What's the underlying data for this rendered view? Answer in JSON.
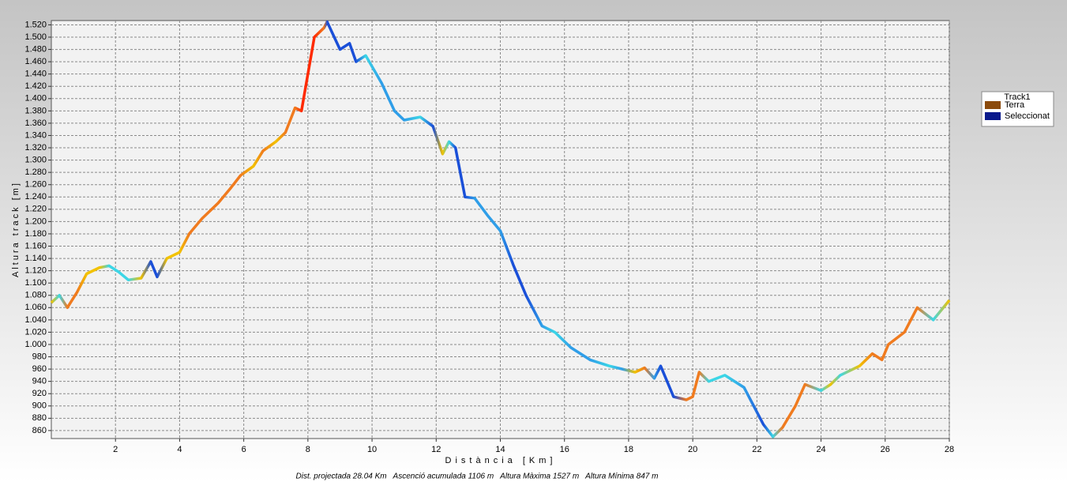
{
  "chart_data": {
    "type": "line",
    "x_label": "Distància [Km]",
    "y_label": "Altura track [m]",
    "footer": "Dist. projectada 28.04 Km   Ascenció acumulada 1106 m   Altura Màxima 1527 m   Altura Mínima 847 m",
    "legend": {
      "title": "Track1",
      "entries": [
        {
          "name": "Terra",
          "color": "#8b4a0c"
        },
        {
          "name": "Seleccionat",
          "color": "#0a1a8c"
        }
      ]
    },
    "xlim": [
      0,
      28
    ],
    "xticks": [
      2,
      4,
      6,
      8,
      10,
      12,
      14,
      16,
      18,
      20,
      22,
      24,
      26,
      28
    ],
    "ylim": [
      847,
      1527
    ],
    "yticks": [
      {
        "value": 860,
        "label": "860"
      },
      {
        "value": 880,
        "label": "880"
      },
      {
        "value": 900,
        "label": "900"
      },
      {
        "value": 920,
        "label": "920"
      },
      {
        "value": 940,
        "label": "940"
      },
      {
        "value": 960,
        "label": "960"
      },
      {
        "value": 980,
        "label": "980"
      },
      {
        "value": 1000,
        "label": "1.000"
      },
      {
        "value": 1020,
        "label": "1.020"
      },
      {
        "value": 1040,
        "label": "1.040"
      },
      {
        "value": 1060,
        "label": "1.060"
      },
      {
        "value": 1080,
        "label": "1.080"
      },
      {
        "value": 1100,
        "label": "1.100"
      },
      {
        "value": 1120,
        "label": "1.120"
      },
      {
        "value": 1140,
        "label": "1.140"
      },
      {
        "value": 1160,
        "label": "1.160"
      },
      {
        "value": 1180,
        "label": "1.180"
      },
      {
        "value": 1200,
        "label": "1.200"
      },
      {
        "value": 1220,
        "label": "1.220"
      },
      {
        "value": 1240,
        "label": "1.240"
      },
      {
        "value": 1260,
        "label": "1.260"
      },
      {
        "value": 1280,
        "label": "1.280"
      },
      {
        "value": 1300,
        "label": "1.300"
      },
      {
        "value": 1320,
        "label": "1.320"
      },
      {
        "value": 1340,
        "label": "1.340"
      },
      {
        "value": 1360,
        "label": "1.360"
      },
      {
        "value": 1380,
        "label": "1.380"
      },
      {
        "value": 1400,
        "label": "1.400"
      },
      {
        "value": 1420,
        "label": "1.420"
      },
      {
        "value": 1440,
        "label": "1.440"
      },
      {
        "value": 1460,
        "label": "1.460"
      },
      {
        "value": 1480,
        "label": "1.480"
      },
      {
        "value": 1500,
        "label": "1.500"
      },
      {
        "value": 1520,
        "label": "1.520"
      }
    ],
    "grid": true,
    "x": [
      0,
      0.25,
      0.5,
      0.8,
      1.1,
      1.5,
      1.8,
      2.1,
      2.4,
      2.8,
      3.1,
      3.3,
      3.6,
      4.0,
      4.3,
      4.7,
      5.2,
      5.6,
      5.9,
      6.3,
      6.6,
      7.0,
      7.3,
      7.6,
      7.8,
      8.2,
      8.5,
      8.6,
      9.0,
      9.3,
      9.5,
      9.8,
      10.3,
      10.7,
      11.0,
      11.5,
      11.9,
      12.2,
      12.4,
      12.6,
      12.9,
      13.2,
      13.6,
      14.0,
      14.4,
      14.8,
      15.3,
      15.7,
      16.2,
      16.8,
      17.4,
      17.8,
      18.2,
      18.5,
      18.8,
      19.0,
      19.4,
      19.8,
      20.0,
      20.2,
      20.5,
      21.0,
      21.6,
      22.2,
      22.5,
      22.8,
      23.2,
      23.5,
      24.0,
      24.3,
      24.6,
      25.2,
      25.6,
      25.9,
      26.1,
      26.6,
      27.0,
      27.5,
      28.0
    ],
    "values": [
      1068,
      1080,
      1060,
      1085,
      1115,
      1125,
      1128,
      1118,
      1105,
      1108,
      1135,
      1110,
      1140,
      1150,
      1180,
      1205,
      1230,
      1255,
      1275,
      1290,
      1315,
      1330,
      1345,
      1385,
      1380,
      1500,
      1515,
      1525,
      1480,
      1490,
      1460,
      1470,
      1425,
      1380,
      1365,
      1370,
      1355,
      1310,
      1330,
      1320,
      1240,
      1238,
      1210,
      1185,
      1130,
      1080,
      1030,
      1020,
      995,
      975,
      965,
      960,
      955,
      962,
      945,
      965,
      915,
      910,
      915,
      955,
      940,
      950,
      930,
      870,
      850,
      865,
      900,
      935,
      925,
      935,
      950,
      965,
      985,
      975,
      1000,
      1020,
      1060,
      1040,
      1072
    ],
    "colors": [
      "#f2c200",
      "#3cd6e6",
      "#f07b1f",
      "#f07b1f",
      "#f2c200",
      "#f2c200",
      "#3cd6e6",
      "#3cd6e6",
      "#3cd6e6",
      "#f2c200",
      "#1a4fd8",
      "#1a4fd8",
      "#f2c200",
      "#f2c200",
      "#f07b1f",
      "#f07b1f",
      "#f07b1f",
      "#f07b1f",
      "#f07b1f",
      "#f2c200",
      "#f07b1f",
      "#f2c200",
      "#f07b1f",
      "#f07b1f",
      "#ff2a00",
      "#ff2a00",
      "#f07b1f",
      "#1a4fd8",
      "#1a4fd8",
      "#1a4fd8",
      "#1a4fd8",
      "#3cd6e6",
      "#2f9ee8",
      "#2f9ee8",
      "#2f9ee8",
      "#3cd6e6",
      "#1a4fd8",
      "#f2c200",
      "#3cd6e6",
      "#1a4fd8",
      "#1a4fd8",
      "#2f9ee8",
      "#2f9ee8",
      "#2f9ee8",
      "#1a4fd8",
      "#1a4fd8",
      "#2f9ee8",
      "#3cd6e6",
      "#2f9ee8",
      "#2f9ee8",
      "#3cd6e6",
      "#2f9ee8",
      "#f2c200",
      "#f07b1f",
      "#2f9ee8",
      "#1a4fd8",
      "#1a4fd8",
      "#f07b1f",
      "#f07b1f",
      "#f07b1f",
      "#3cd6e6",
      "#3cd6e6",
      "#2f9ee8",
      "#1a4fd8",
      "#3cd6e6",
      "#f07b1f",
      "#f07b1f",
      "#f07b1f",
      "#3cd6e6",
      "#f2c200",
      "#3cd6e6",
      "#f2c200",
      "#f07b1f",
      "#f07b1f",
      "#f07b1f",
      "#f07b1f",
      "#f07b1f",
      "#3cd6e6",
      "#f2c200"
    ]
  }
}
